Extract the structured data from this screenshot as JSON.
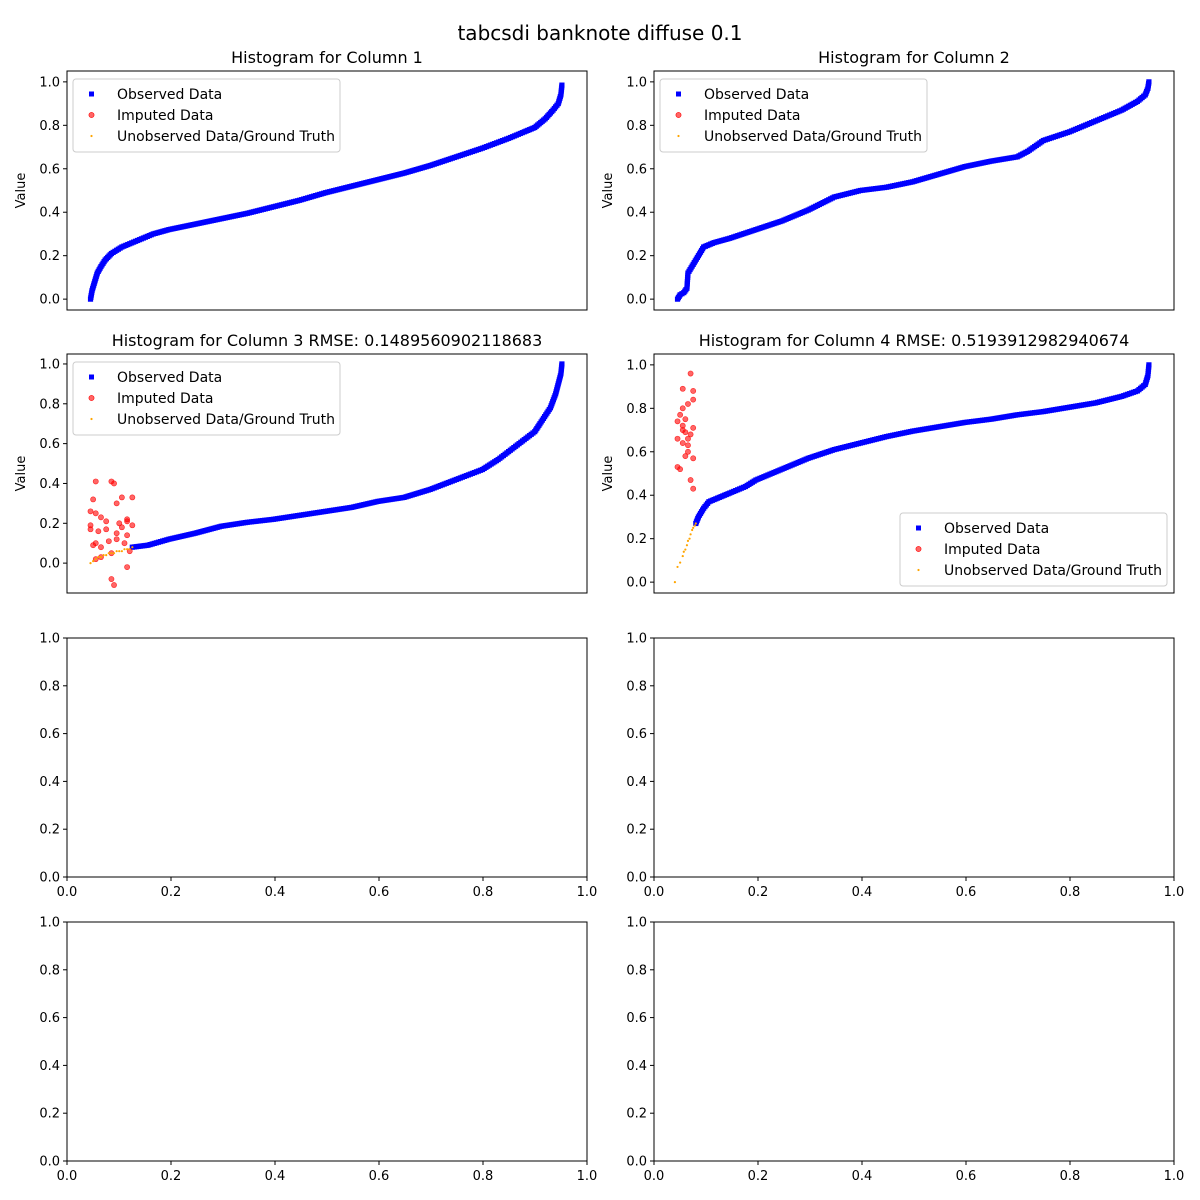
{
  "suptitle": "tabcsdi banknote diffuse 0.1",
  "colors": {
    "observed": "#0000ff",
    "imputed": "#ff0000",
    "unobserved": "#ffa500",
    "axis": "#000000"
  },
  "legend_labels": {
    "observed": "Observed Data",
    "imputed": "Imputed Data",
    "unobserved": "Unobserved Data/Ground Truth"
  },
  "chart_data": [
    {
      "type": "scatter",
      "title": "Histogram for Column 1",
      "ylabel": "Value",
      "xlim": [
        0.005,
        1.0
      ],
      "ylim": [
        -0.05,
        1.05
      ],
      "yticks": [
        "0.0",
        "0.2",
        "0.4",
        "0.6",
        "0.8",
        "1.0"
      ],
      "show_xticks": false,
      "legend": "top-left",
      "series": [
        {
          "name": "Observed Data",
          "marker": "square",
          "points": [
            [
              0.05,
              0.0
            ],
            [
              0.053,
              0.04
            ],
            [
              0.058,
              0.08
            ],
            [
              0.063,
              0.12
            ],
            [
              0.07,
              0.15
            ],
            [
              0.078,
              0.18
            ],
            [
              0.09,
              0.21
            ],
            [
              0.11,
              0.24
            ],
            [
              0.14,
              0.27
            ],
            [
              0.17,
              0.3
            ],
            [
              0.2,
              0.32
            ],
            [
              0.25,
              0.345
            ],
            [
              0.3,
              0.37
            ],
            [
              0.35,
              0.395
            ],
            [
              0.4,
              0.425
            ],
            [
              0.45,
              0.455
            ],
            [
              0.5,
              0.49
            ],
            [
              0.55,
              0.52
            ],
            [
              0.6,
              0.55
            ],
            [
              0.65,
              0.58
            ],
            [
              0.7,
              0.615
            ],
            [
              0.75,
              0.655
            ],
            [
              0.8,
              0.695
            ],
            [
              0.85,
              0.74
            ],
            [
              0.88,
              0.77
            ],
            [
              0.9,
              0.79
            ],
            [
              0.92,
              0.83
            ],
            [
              0.935,
              0.87
            ],
            [
              0.945,
              0.9
            ],
            [
              0.95,
              0.94
            ],
            [
              0.952,
              0.985
            ]
          ]
        },
        {
          "name": "Imputed Data",
          "marker": "circle",
          "points": []
        },
        {
          "name": "Unobserved Data/Ground Truth",
          "marker": "dot",
          "points": []
        }
      ]
    },
    {
      "type": "scatter",
      "title": "Histogram for Column 2",
      "ylabel": "Value",
      "xlim": [
        0.005,
        1.0
      ],
      "ylim": [
        -0.05,
        1.05
      ],
      "yticks": [
        "0.0",
        "0.2",
        "0.4",
        "0.6",
        "0.8",
        "1.0"
      ],
      "show_xticks": false,
      "legend": "top-left",
      "series": [
        {
          "name": "Observed Data",
          "marker": "square",
          "points": [
            [
              0.05,
              0.0
            ],
            [
              0.055,
              0.02
            ],
            [
              0.062,
              0.03
            ],
            [
              0.068,
              0.05
            ],
            [
              0.07,
              0.12
            ],
            [
              0.08,
              0.16
            ],
            [
              0.09,
              0.2
            ],
            [
              0.1,
              0.24
            ],
            [
              0.12,
              0.26
            ],
            [
              0.15,
              0.28
            ],
            [
              0.2,
              0.32
            ],
            [
              0.25,
              0.36
            ],
            [
              0.3,
              0.41
            ],
            [
              0.35,
              0.47
            ],
            [
              0.4,
              0.5
            ],
            [
              0.45,
              0.515
            ],
            [
              0.5,
              0.54
            ],
            [
              0.55,
              0.575
            ],
            [
              0.6,
              0.61
            ],
            [
              0.65,
              0.635
            ],
            [
              0.7,
              0.655
            ],
            [
              0.72,
              0.68
            ],
            [
              0.75,
              0.73
            ],
            [
              0.8,
              0.77
            ],
            [
              0.85,
              0.82
            ],
            [
              0.9,
              0.87
            ],
            [
              0.93,
              0.91
            ],
            [
              0.945,
              0.94
            ],
            [
              0.95,
              0.97
            ],
            [
              0.952,
              1.0
            ]
          ]
        },
        {
          "name": "Imputed Data",
          "marker": "circle",
          "points": []
        },
        {
          "name": "Unobserved Data/Ground Truth",
          "marker": "dot",
          "points": []
        }
      ]
    },
    {
      "type": "scatter",
      "title": "Histogram for Column 3 RMSE: 0.1489560902118683",
      "ylabel": "Value",
      "xlim": [
        0.005,
        1.0
      ],
      "ylim": [
        -0.15,
        1.05
      ],
      "yticks": [
        "0.0",
        "0.2",
        "0.4",
        "0.6",
        "0.8",
        "1.0"
      ],
      "show_xticks": false,
      "legend": "top-left",
      "series": [
        {
          "name": "Observed Data",
          "marker": "square",
          "points": [
            [
              0.13,
              0.08
            ],
            [
              0.16,
              0.09
            ],
            [
              0.2,
              0.12
            ],
            [
              0.25,
              0.15
            ],
            [
              0.3,
              0.185
            ],
            [
              0.35,
              0.205
            ],
            [
              0.4,
              0.22
            ],
            [
              0.45,
              0.24
            ],
            [
              0.5,
              0.26
            ],
            [
              0.55,
              0.28
            ],
            [
              0.6,
              0.31
            ],
            [
              0.65,
              0.33
            ],
            [
              0.7,
              0.37
            ],
            [
              0.75,
              0.42
            ],
            [
              0.8,
              0.47
            ],
            [
              0.83,
              0.52
            ],
            [
              0.86,
              0.58
            ],
            [
              0.88,
              0.62
            ],
            [
              0.9,
              0.66
            ],
            [
              0.91,
              0.7
            ],
            [
              0.93,
              0.78
            ],
            [
              0.94,
              0.85
            ],
            [
              0.945,
              0.9
            ],
            [
              0.95,
              0.95
            ],
            [
              0.952,
              1.0
            ]
          ]
        },
        {
          "name": "Imputed Data",
          "marker": "circle",
          "points": [
            [
              0.05,
              0.26
            ],
            [
              0.055,
              0.32
            ],
            [
              0.06,
              0.25
            ],
            [
              0.06,
              0.41
            ],
            [
              0.07,
              0.23
            ],
            [
              0.05,
              0.19
            ],
            [
              0.08,
              0.17
            ],
            [
              0.06,
              0.1
            ],
            [
              0.07,
              0.03
            ],
            [
              0.09,
              0.05
            ],
            [
              0.1,
              0.12
            ],
            [
              0.11,
              0.18
            ],
            [
              0.12,
              0.21
            ],
            [
              0.1,
              0.3
            ],
            [
              0.09,
              0.41
            ],
            [
              0.095,
              0.4
            ],
            [
              0.11,
              0.33
            ],
            [
              0.12,
              0.22
            ],
            [
              0.13,
              0.19
            ],
            [
              0.125,
              0.06
            ],
            [
              0.09,
              -0.08
            ],
            [
              0.095,
              -0.11
            ],
            [
              0.12,
              -0.02
            ],
            [
              0.115,
              0.1
            ],
            [
              0.08,
              0.21
            ],
            [
              0.07,
              0.08
            ],
            [
              0.06,
              0.02
            ],
            [
              0.055,
              0.09
            ],
            [
              0.1,
              0.15
            ],
            [
              0.13,
              0.33
            ],
            [
              0.05,
              0.17
            ],
            [
              0.065,
              0.16
            ],
            [
              0.085,
              0.11
            ],
            [
              0.105,
              0.2
            ],
            [
              0.12,
              0.14
            ]
          ]
        },
        {
          "name": "Unobserved Data/Ground Truth",
          "marker": "dot",
          "points": [
            [
              0.05,
              0.0
            ],
            [
              0.055,
              0.01
            ],
            [
              0.06,
              0.02
            ],
            [
              0.065,
              0.03
            ],
            [
              0.07,
              0.03
            ],
            [
              0.075,
              0.04
            ],
            [
              0.08,
              0.04
            ],
            [
              0.085,
              0.05
            ],
            [
              0.09,
              0.05
            ],
            [
              0.095,
              0.05
            ],
            [
              0.1,
              0.06
            ],
            [
              0.105,
              0.06
            ],
            [
              0.11,
              0.06
            ],
            [
              0.115,
              0.07
            ],
            [
              0.12,
              0.07
            ],
            [
              0.125,
              0.07
            ],
            [
              0.13,
              0.08
            ]
          ]
        }
      ]
    },
    {
      "type": "scatter",
      "title": "Histogram for Column 4 RMSE: 0.5193912982940674",
      "ylabel": "Value",
      "xlim": [
        0.005,
        1.0
      ],
      "ylim": [
        -0.05,
        1.05
      ],
      "yticks": [
        "0.0",
        "0.2",
        "0.4",
        "0.6",
        "0.8",
        "1.0"
      ],
      "show_xticks": false,
      "legend": "bottom-right",
      "series": [
        {
          "name": "Observed Data",
          "marker": "square",
          "points": [
            [
              0.085,
              0.27
            ],
            [
              0.09,
              0.3
            ],
            [
              0.1,
              0.34
            ],
            [
              0.11,
              0.37
            ],
            [
              0.13,
              0.39
            ],
            [
              0.15,
              0.41
            ],
            [
              0.18,
              0.44
            ],
            [
              0.2,
              0.47
            ],
            [
              0.25,
              0.52
            ],
            [
              0.3,
              0.57
            ],
            [
              0.35,
              0.61
            ],
            [
              0.4,
              0.64
            ],
            [
              0.45,
              0.67
            ],
            [
              0.5,
              0.695
            ],
            [
              0.55,
              0.715
            ],
            [
              0.6,
              0.735
            ],
            [
              0.65,
              0.75
            ],
            [
              0.7,
              0.77
            ],
            [
              0.75,
              0.785
            ],
            [
              0.8,
              0.805
            ],
            [
              0.85,
              0.825
            ],
            [
              0.9,
              0.855
            ],
            [
              0.93,
              0.88
            ],
            [
              0.945,
              0.91
            ],
            [
              0.95,
              0.95
            ],
            [
              0.952,
              1.0
            ]
          ]
        },
        {
          "name": "Imputed Data",
          "marker": "circle",
          "points": [
            [
              0.05,
              0.53
            ],
            [
              0.055,
              0.52
            ],
            [
              0.06,
              0.64
            ],
            [
              0.05,
              0.66
            ],
            [
              0.06,
              0.72
            ],
            [
              0.065,
              0.75
            ],
            [
              0.07,
              0.82
            ],
            [
              0.06,
              0.89
            ],
            [
              0.075,
              0.96
            ],
            [
              0.08,
              0.88
            ],
            [
              0.08,
              0.57
            ],
            [
              0.075,
              0.47
            ],
            [
              0.08,
              0.43
            ],
            [
              0.07,
              0.6
            ],
            [
              0.065,
              0.69
            ],
            [
              0.07,
              0.66
            ],
            [
              0.06,
              0.8
            ],
            [
              0.055,
              0.77
            ],
            [
              0.075,
              0.68
            ],
            [
              0.08,
              0.84
            ],
            [
              0.065,
              0.58
            ],
            [
              0.07,
              0.63
            ],
            [
              0.06,
              0.7
            ],
            [
              0.08,
              0.71
            ],
            [
              0.05,
              0.74
            ]
          ]
        },
        {
          "name": "Unobserved Data/Ground Truth",
          "marker": "dot",
          "points": [
            [
              0.045,
              0.0
            ],
            [
              0.05,
              0.07
            ],
            [
              0.055,
              0.09
            ],
            [
              0.06,
              0.12
            ],
            [
              0.062,
              0.14
            ],
            [
              0.065,
              0.15
            ],
            [
              0.068,
              0.17
            ],
            [
              0.07,
              0.19
            ],
            [
              0.073,
              0.2
            ],
            [
              0.075,
              0.22
            ],
            [
              0.078,
              0.24
            ],
            [
              0.08,
              0.25
            ],
            [
              0.083,
              0.26
            ],
            [
              0.085,
              0.27
            ]
          ]
        }
      ]
    },
    {
      "type": "scatter",
      "title": "",
      "xlim": [
        0,
        1
      ],
      "ylim": [
        0,
        1
      ],
      "yticks": [
        "0.0",
        "0.2",
        "0.4",
        "0.6",
        "0.8",
        "1.0"
      ],
      "xticks": [
        "0.0",
        "0.2",
        "0.4",
        "0.6",
        "0.8",
        "1.0"
      ],
      "show_xticks": true,
      "series": []
    },
    {
      "type": "scatter",
      "title": "",
      "xlim": [
        0,
        1
      ],
      "ylim": [
        0,
        1
      ],
      "yticks": [
        "0.0",
        "0.2",
        "0.4",
        "0.6",
        "0.8",
        "1.0"
      ],
      "xticks": [
        "0.0",
        "0.2",
        "0.4",
        "0.6",
        "0.8",
        "1.0"
      ],
      "show_xticks": true,
      "series": []
    },
    {
      "type": "scatter",
      "title": "",
      "xlim": [
        0,
        1
      ],
      "ylim": [
        0,
        1
      ],
      "yticks": [
        "0.0",
        "0.2",
        "0.4",
        "0.6",
        "0.8",
        "1.0"
      ],
      "xticks": [
        "0.0",
        "0.2",
        "0.4",
        "0.6",
        "0.8",
        "1.0"
      ],
      "show_xticks": true,
      "series": []
    },
    {
      "type": "scatter",
      "title": "",
      "xlim": [
        0,
        1
      ],
      "ylim": [
        0,
        1
      ],
      "yticks": [
        "0.0",
        "0.2",
        "0.4",
        "0.6",
        "0.8",
        "1.0"
      ],
      "xticks": [
        "0.0",
        "0.2",
        "0.4",
        "0.6",
        "0.8",
        "1.0"
      ],
      "show_xticks": true,
      "series": []
    }
  ]
}
